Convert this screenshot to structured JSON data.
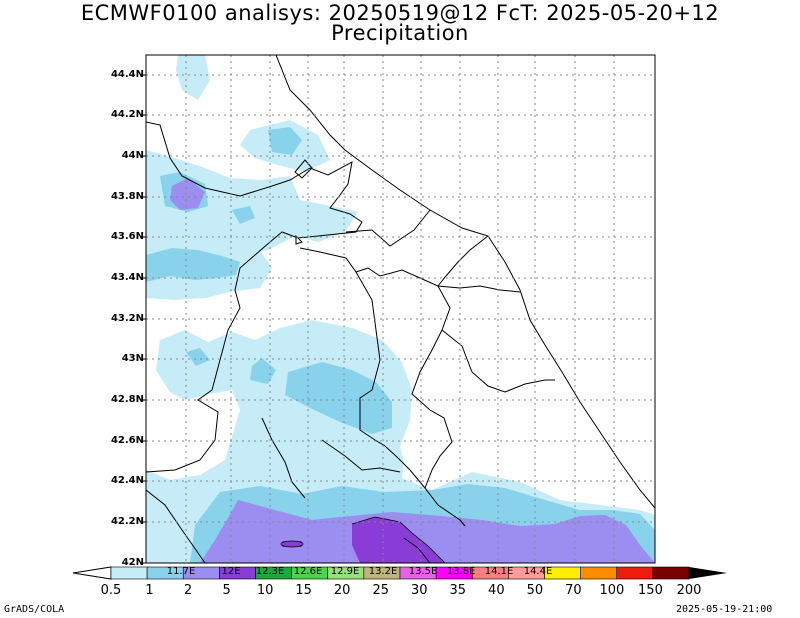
{
  "header": {
    "title_line1": "ECMWF0100 analisys: 20250519@12 FcT: 2025-05-20+12",
    "title_line2": "Precipitation"
  },
  "map": {
    "lat_labels": [
      "44.4N",
      "44.2N",
      "44N",
      "43.8N",
      "43.6N",
      "43.4N",
      "43.2N",
      "43N",
      "42.8N",
      "42.6N",
      "42.4N",
      "42.2N",
      "42N"
    ],
    "lon_labels": [
      "11.7E",
      "12E",
      "12.3E",
      "12.6E",
      "12.9E",
      "13.2E",
      "13.5E",
      "13.8E",
      "14.1E",
      "14.4E"
    ],
    "grid": true
  },
  "colorbar": {
    "labels": [
      "0.5",
      "1",
      "2",
      "5",
      "10",
      "15",
      "20",
      "25",
      "30",
      "35",
      "40",
      "50",
      "70",
      "100",
      "150",
      "200"
    ],
    "colors": [
      "#c6ecf8",
      "#88d2ec",
      "#9c8ef0",
      "#8a3cd6",
      "#1aaa3a",
      "#4ad64a",
      "#98e078",
      "#c0b47a",
      "#e862e8",
      "#ff00ff",
      "#f88080",
      "#ff9c9c",
      "#ffee00",
      "#ff8c00",
      "#ee1c0c",
      "#7a0000"
    ]
  },
  "footer": {
    "left": "GrADS/COLA",
    "right": "2025-05-19-21:00"
  }
}
